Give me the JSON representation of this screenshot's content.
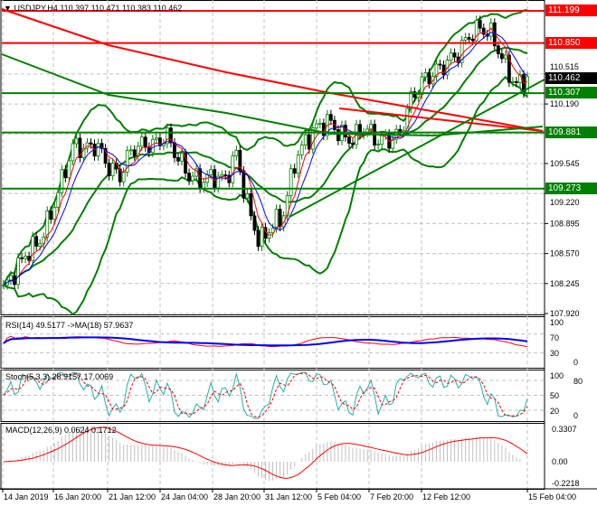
{
  "chart_data": {
    "type": "candlestick",
    "title": "USDJPY,H4",
    "ohlc_header": "110.397 110.471 110.383 110.462",
    "symbol": "USDJPY",
    "timeframe": "H4",
    "ylim": [
      107.92,
      111.199
    ],
    "y_ticks": [
      "110.515",
      "110.190",
      "109.545",
      "109.220",
      "108.895",
      "108.570",
      "108.245",
      "107.920"
    ],
    "x_ticks": [
      "14 Jan 2019",
      "16 Jan 20:00",
      "21 Jan 12:00",
      "24 Jan 04:00",
      "28 Jan 20:00",
      "31 Jan 12:00",
      "5 Feb 04:00",
      "7 Feb 20:00",
      "12 Feb 12:00",
      "15 Feb 04:00"
    ],
    "closes_approx": [
      108.18,
      108.38,
      108.58,
      108.68,
      108.97,
      109.36,
      109.75,
      109.7,
      109.75,
      109.51,
      109.41,
      109.7,
      109.75,
      109.75,
      109.85,
      109.6,
      109.41,
      109.36,
      109.41,
      109.36,
      109.65,
      109.07,
      108.68,
      108.87,
      108.97,
      109.56,
      109.8,
      109.95,
      110.0,
      109.85,
      109.8,
      109.95,
      109.8,
      109.8,
      109.85,
      110.24,
      110.44,
      110.53,
      110.63,
      110.73,
      110.93,
      111.02,
      110.93,
      110.63,
      110.39,
      110.46
    ],
    "levels": [
      {
        "price": "111.199",
        "color": "#ff0000"
      },
      {
        "price": "110.850",
        "color": "#ff0000"
      },
      {
        "price": "110.307",
        "color": "#008000"
      },
      {
        "price": "109.881",
        "color": "#008000"
      },
      {
        "price": "109.273",
        "color": "#008000"
      }
    ],
    "current_price": {
      "price": "110.462",
      "color": "#000000"
    },
    "indicators": {
      "rsi": {
        "label": "RSI(14) 49.5177  ->MA(18) 57.9637",
        "ticks": [
          "100",
          "70",
          "30",
          "0"
        ]
      },
      "stoch": {
        "label": "Stoch(5,3,3) 28.9157 17.0069",
        "ticks": [
          "100",
          "80",
          "50",
          "20",
          "0"
        ]
      },
      "macd": {
        "label": "MACD(12,26,9) 0.0624 0.1712",
        "ticks": [
          "0.3307",
          "0.00",
          "-0.2218"
        ]
      }
    },
    "colors": {
      "bull": "#008000",
      "bear": "#000000",
      "bands": "#008000",
      "ma_fast": "#ff0000",
      "ma_slow": "#0000ff",
      "rsi": "#ff0000",
      "rsi_ma": "#0000ff",
      "stoch_main": "#20b2aa",
      "stoch_signal": "#ff0000",
      "macd_hist": "#c0c0c0",
      "macd_signal": "#ff0000"
    }
  }
}
